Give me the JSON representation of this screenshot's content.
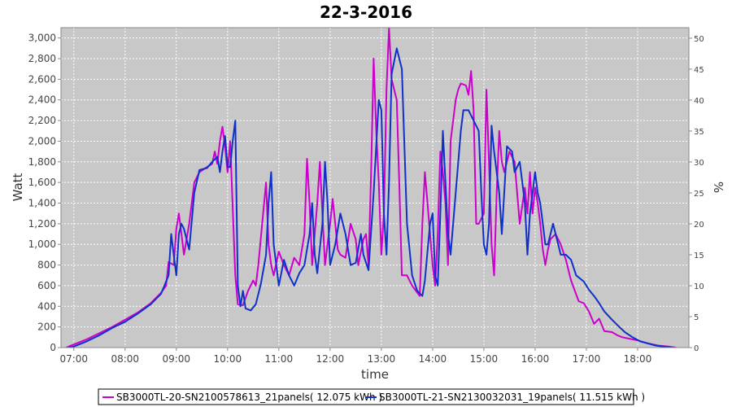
{
  "chart_data": {
    "type": "line",
    "title": "22-3-2016",
    "xlabel": "time",
    "ylabel": "Watt",
    "y2label": "%",
    "xlim": [
      6.75,
      19.0
    ],
    "ylim": [
      0,
      3100
    ],
    "y2lim": [
      0,
      51.7
    ],
    "x_ticks": [
      {
        "x": 7,
        "label": "07:00"
      },
      {
        "x": 8,
        "label": "08:00"
      },
      {
        "x": 9,
        "label": "09:00"
      },
      {
        "x": 10,
        "label": "10:00"
      },
      {
        "x": 11,
        "label": "11:00"
      },
      {
        "x": 12,
        "label": "12:00"
      },
      {
        "x": 13,
        "label": "13:00"
      },
      {
        "x": 14,
        "label": "14:00"
      },
      {
        "x": 15,
        "label": "15:00"
      },
      {
        "x": 16,
        "label": "16:00"
      },
      {
        "x": 17,
        "label": "17:00"
      },
      {
        "x": 18,
        "label": "18:00"
      }
    ],
    "y_ticks": [
      {
        "v": 0,
        "label": "0"
      },
      {
        "v": 200,
        "label": "200"
      },
      {
        "v": 400,
        "label": "400"
      },
      {
        "v": 600,
        "label": "600"
      },
      {
        "v": 800,
        "label": "800"
      },
      {
        "v": 1000,
        "label": "1,000"
      },
      {
        "v": 1200,
        "label": "1,200"
      },
      {
        "v": 1400,
        "label": "1,400"
      },
      {
        "v": 1600,
        "label": "1,600"
      },
      {
        "v": 1800,
        "label": "1,800"
      },
      {
        "v": 2000,
        "label": "2,000"
      },
      {
        "v": 2200,
        "label": "2,200"
      },
      {
        "v": 2400,
        "label": "2,400"
      },
      {
        "v": 2600,
        "label": "2,600"
      },
      {
        "v": 2800,
        "label": "2,800"
      },
      {
        "v": 3000,
        "label": "3,000"
      }
    ],
    "y2_ticks": [
      {
        "v": 0,
        "label": "0"
      },
      {
        "v": 5,
        "label": "5"
      },
      {
        "v": 10,
        "label": "10"
      },
      {
        "v": 15,
        "label": "15"
      },
      {
        "v": 20,
        "label": "20"
      },
      {
        "v": 25,
        "label": "25"
      },
      {
        "v": 30,
        "label": "30"
      },
      {
        "v": 35,
        "label": "35"
      },
      {
        "v": 40,
        "label": "40"
      },
      {
        "v": 45,
        "label": "45"
      },
      {
        "v": 50,
        "label": "50"
      }
    ],
    "grid": true,
    "legend_position": "bottom",
    "series": [
      {
        "name": "SB3000TL-20-SN2100578613_21panels( 12.075 kWh )",
        "color": "#cc00cc",
        "points": [
          [
            6.85,
            0
          ],
          [
            7.0,
            30
          ],
          [
            7.25,
            80
          ],
          [
            7.5,
            140
          ],
          [
            7.75,
            200
          ],
          [
            8.0,
            270
          ],
          [
            8.25,
            340
          ],
          [
            8.5,
            430
          ],
          [
            8.7,
            530
          ],
          [
            8.8,
            600
          ],
          [
            8.85,
            830
          ],
          [
            8.95,
            800
          ],
          [
            9.0,
            1150
          ],
          [
            9.05,
            1300
          ],
          [
            9.1,
            1100
          ],
          [
            9.15,
            900
          ],
          [
            9.25,
            1200
          ],
          [
            9.35,
            1600
          ],
          [
            9.45,
            1700
          ],
          [
            9.6,
            1750
          ],
          [
            9.7,
            1780
          ],
          [
            9.75,
            1900
          ],
          [
            9.8,
            1780
          ],
          [
            9.85,
            2000
          ],
          [
            9.9,
            2140
          ],
          [
            9.95,
            1950
          ],
          [
            10.0,
            1700
          ],
          [
            10.05,
            2000
          ],
          [
            10.15,
            700
          ],
          [
            10.2,
            420
          ],
          [
            10.3,
            410
          ],
          [
            10.4,
            550
          ],
          [
            10.5,
            650
          ],
          [
            10.55,
            600
          ],
          [
            10.6,
            800
          ],
          [
            10.75,
            1600
          ],
          [
            10.8,
            1000
          ],
          [
            10.85,
            800
          ],
          [
            10.9,
            700
          ],
          [
            11.0,
            930
          ],
          [
            11.1,
            800
          ],
          [
            11.2,
            700
          ],
          [
            11.3,
            870
          ],
          [
            11.4,
            800
          ],
          [
            11.5,
            1100
          ],
          [
            11.55,
            1830
          ],
          [
            11.6,
            1400
          ],
          [
            11.65,
            800
          ],
          [
            11.75,
            1400
          ],
          [
            11.8,
            1800
          ],
          [
            11.85,
            1300
          ],
          [
            11.9,
            800
          ],
          [
            11.95,
            1000
          ],
          [
            12.0,
            1200
          ],
          [
            12.05,
            1440
          ],
          [
            12.1,
            1200
          ],
          [
            12.15,
            950
          ],
          [
            12.2,
            900
          ],
          [
            12.3,
            870
          ],
          [
            12.4,
            1200
          ],
          [
            12.5,
            1050
          ],
          [
            12.55,
            800
          ],
          [
            12.65,
            1050
          ],
          [
            12.7,
            1100
          ],
          [
            12.75,
            800
          ],
          [
            12.8,
            1700
          ],
          [
            12.85,
            2800
          ],
          [
            12.9,
            2100
          ],
          [
            12.95,
            1600
          ],
          [
            13.0,
            900
          ],
          [
            13.05,
            1300
          ],
          [
            13.1,
            2500
          ],
          [
            13.15,
            3100
          ],
          [
            13.2,
            2600
          ],
          [
            13.3,
            2400
          ],
          [
            13.35,
            1600
          ],
          [
            13.4,
            700
          ],
          [
            13.5,
            700
          ],
          [
            13.55,
            650
          ],
          [
            13.6,
            600
          ],
          [
            13.75,
            500
          ],
          [
            13.8,
            1200
          ],
          [
            13.85,
            1700
          ],
          [
            13.9,
            1400
          ],
          [
            14.0,
            800
          ],
          [
            14.05,
            600
          ],
          [
            14.1,
            1100
          ],
          [
            14.15,
            1900
          ],
          [
            14.2,
            1700
          ],
          [
            14.25,
            1400
          ],
          [
            14.3,
            800
          ],
          [
            14.35,
            2000
          ],
          [
            14.45,
            2400
          ],
          [
            14.5,
            2500
          ],
          [
            14.55,
            2560
          ],
          [
            14.65,
            2540
          ],
          [
            14.7,
            2450
          ],
          [
            14.75,
            2680
          ],
          [
            14.8,
            2300
          ],
          [
            14.85,
            1200
          ],
          [
            14.9,
            1200
          ],
          [
            15.0,
            1300
          ],
          [
            15.05,
            2500
          ],
          [
            15.1,
            1800
          ],
          [
            15.15,
            1000
          ],
          [
            15.2,
            700
          ],
          [
            15.25,
            1500
          ],
          [
            15.3,
            2100
          ],
          [
            15.35,
            1800
          ],
          [
            15.4,
            1700
          ],
          [
            15.5,
            1900
          ],
          [
            15.6,
            1800
          ],
          [
            15.7,
            1200
          ],
          [
            15.8,
            1550
          ],
          [
            15.85,
            1300
          ],
          [
            15.9,
            1700
          ],
          [
            15.95,
            1300
          ],
          [
            16.0,
            1550
          ],
          [
            16.05,
            1400
          ],
          [
            16.1,
            1200
          ],
          [
            16.15,
            950
          ],
          [
            16.2,
            800
          ],
          [
            16.25,
            950
          ],
          [
            16.3,
            1050
          ],
          [
            16.4,
            1100
          ],
          [
            16.5,
            1000
          ],
          [
            16.6,
            850
          ],
          [
            16.7,
            650
          ],
          [
            16.85,
            450
          ],
          [
            16.95,
            430
          ],
          [
            17.05,
            350
          ],
          [
            17.15,
            230
          ],
          [
            17.25,
            280
          ],
          [
            17.35,
            160
          ],
          [
            17.5,
            150
          ],
          [
            17.6,
            120
          ],
          [
            17.7,
            100
          ],
          [
            17.8,
            90
          ],
          [
            18.0,
            70
          ],
          [
            18.2,
            40
          ],
          [
            18.4,
            20
          ],
          [
            18.6,
            10
          ],
          [
            18.75,
            0
          ]
        ]
      },
      {
        "name": "SB3000TL-21-SN2130032031_19panels( 11.515 kWh )",
        "color": "#1030cc",
        "points": [
          [
            6.9,
            0
          ],
          [
            7.0,
            10
          ],
          [
            7.25,
            60
          ],
          [
            7.5,
            120
          ],
          [
            7.75,
            190
          ],
          [
            8.0,
            250
          ],
          [
            8.25,
            330
          ],
          [
            8.5,
            420
          ],
          [
            8.7,
            520
          ],
          [
            8.85,
            700
          ],
          [
            8.9,
            1100
          ],
          [
            8.95,
            900
          ],
          [
            9.0,
            700
          ],
          [
            9.05,
            1100
          ],
          [
            9.1,
            1200
          ],
          [
            9.15,
            1150
          ],
          [
            9.25,
            950
          ],
          [
            9.35,
            1500
          ],
          [
            9.45,
            1720
          ],
          [
            9.6,
            1740
          ],
          [
            9.7,
            1800
          ],
          [
            9.8,
            1850
          ],
          [
            9.85,
            1700
          ],
          [
            9.9,
            1900
          ],
          [
            9.95,
            2050
          ],
          [
            10.0,
            1750
          ],
          [
            10.05,
            1750
          ],
          [
            10.1,
            2000
          ],
          [
            10.15,
            2200
          ],
          [
            10.2,
            600
          ],
          [
            10.25,
            400
          ],
          [
            10.3,
            550
          ],
          [
            10.35,
            380
          ],
          [
            10.45,
            360
          ],
          [
            10.55,
            420
          ],
          [
            10.65,
            620
          ],
          [
            10.75,
            900
          ],
          [
            10.8,
            1400
          ],
          [
            10.85,
            1700
          ],
          [
            10.9,
            1000
          ],
          [
            10.95,
            800
          ],
          [
            11.0,
            600
          ],
          [
            11.1,
            850
          ],
          [
            11.2,
            700
          ],
          [
            11.3,
            600
          ],
          [
            11.4,
            720
          ],
          [
            11.5,
            800
          ],
          [
            11.6,
            1100
          ],
          [
            11.65,
            1400
          ],
          [
            11.7,
            900
          ],
          [
            11.75,
            720
          ],
          [
            11.85,
            1200
          ],
          [
            11.9,
            1800
          ],
          [
            11.95,
            1400
          ],
          [
            12.0,
            800
          ],
          [
            12.1,
            1000
          ],
          [
            12.2,
            1300
          ],
          [
            12.3,
            1100
          ],
          [
            12.4,
            800
          ],
          [
            12.5,
            820
          ],
          [
            12.6,
            1100
          ],
          [
            12.65,
            900
          ],
          [
            12.75,
            750
          ],
          [
            12.85,
            1500
          ],
          [
            12.95,
            2400
          ],
          [
            13.0,
            2300
          ],
          [
            13.05,
            1300
          ],
          [
            13.1,
            900
          ],
          [
            13.15,
            1600
          ],
          [
            13.2,
            2650
          ],
          [
            13.3,
            2900
          ],
          [
            13.4,
            2700
          ],
          [
            13.5,
            1200
          ],
          [
            13.6,
            700
          ],
          [
            13.7,
            550
          ],
          [
            13.8,
            500
          ],
          [
            13.85,
            650
          ],
          [
            13.95,
            1200
          ],
          [
            14.0,
            1300
          ],
          [
            14.05,
            700
          ],
          [
            14.1,
            600
          ],
          [
            14.15,
            1300
          ],
          [
            14.2,
            2100
          ],
          [
            14.25,
            1600
          ],
          [
            14.3,
            1100
          ],
          [
            14.35,
            900
          ],
          [
            14.45,
            1500
          ],
          [
            14.55,
            2100
          ],
          [
            14.6,
            2300
          ],
          [
            14.7,
            2300
          ],
          [
            14.8,
            2200
          ],
          [
            14.9,
            2100
          ],
          [
            14.95,
            1500
          ],
          [
            15.0,
            1000
          ],
          [
            15.05,
            900
          ],
          [
            15.1,
            1200
          ],
          [
            15.15,
            2150
          ],
          [
            15.2,
            1900
          ],
          [
            15.3,
            1500
          ],
          [
            15.35,
            1100
          ],
          [
            15.45,
            1950
          ],
          [
            15.55,
            1900
          ],
          [
            15.6,
            1700
          ],
          [
            15.7,
            1800
          ],
          [
            15.75,
            1600
          ],
          [
            15.8,
            1400
          ],
          [
            15.85,
            900
          ],
          [
            15.9,
            1300
          ],
          [
            15.95,
            1500
          ],
          [
            16.0,
            1700
          ],
          [
            16.05,
            1500
          ],
          [
            16.1,
            1400
          ],
          [
            16.15,
            1200
          ],
          [
            16.2,
            1000
          ],
          [
            16.25,
            1000
          ],
          [
            16.35,
            1200
          ],
          [
            16.45,
            1000
          ],
          [
            16.5,
            900
          ],
          [
            16.6,
            900
          ],
          [
            16.7,
            850
          ],
          [
            16.8,
            700
          ],
          [
            16.95,
            640
          ],
          [
            17.05,
            560
          ],
          [
            17.15,
            500
          ],
          [
            17.25,
            430
          ],
          [
            17.35,
            350
          ],
          [
            17.5,
            270
          ],
          [
            17.6,
            220
          ],
          [
            17.75,
            150
          ],
          [
            17.9,
            100
          ],
          [
            18.05,
            60
          ],
          [
            18.2,
            40
          ],
          [
            18.35,
            20
          ],
          [
            18.5,
            10
          ],
          [
            18.7,
            0
          ]
        ]
      }
    ]
  }
}
